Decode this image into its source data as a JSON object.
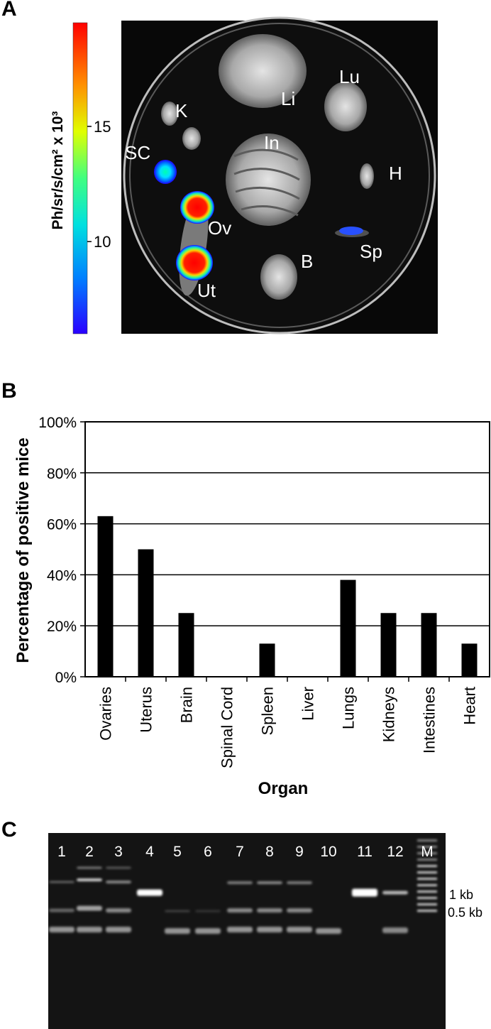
{
  "panels": {
    "a": "A",
    "b": "B",
    "c": "C"
  },
  "panel_a": {
    "colorbar_label": "Ph/sr/s/cm² x 10³",
    "colorbar_ticks": [
      {
        "label": "15",
        "value": 15
      },
      {
        "label": "10",
        "value": 10
      }
    ],
    "colorbar_range": [
      6,
      19.5
    ],
    "organ_labels": [
      "Li",
      "Lu",
      "K",
      "In",
      "SC",
      "H",
      "Ov",
      "Sp",
      "B",
      "Ut"
    ]
  },
  "chart_data": {
    "type": "bar",
    "categories": [
      "Ovaries",
      "Uterus",
      "Brain",
      "Spinal Cord",
      "Spleen",
      "Liver",
      "Lungs",
      "Kidneys",
      "Intestines",
      "Heart"
    ],
    "values": [
      63,
      50,
      25,
      0,
      13,
      0,
      38,
      25,
      25,
      13
    ],
    "ylabel": "Percentage of positive mice",
    "xlabel": "Organ",
    "ylim": [
      0,
      100
    ],
    "yticks": [
      "0%",
      "20%",
      "40%",
      "60%",
      "80%",
      "100%"
    ],
    "ytick_values": [
      0,
      20,
      40,
      60,
      80,
      100
    ],
    "grid": "horizontal",
    "bar_color": "#000000"
  },
  "panel_c": {
    "lanes": [
      "1",
      "2",
      "3",
      "4",
      "5",
      "6",
      "7",
      "8",
      "9",
      "10",
      "11",
      "12",
      "M"
    ],
    "size_markers": [
      "1 kb",
      "0.5 kb"
    ]
  }
}
